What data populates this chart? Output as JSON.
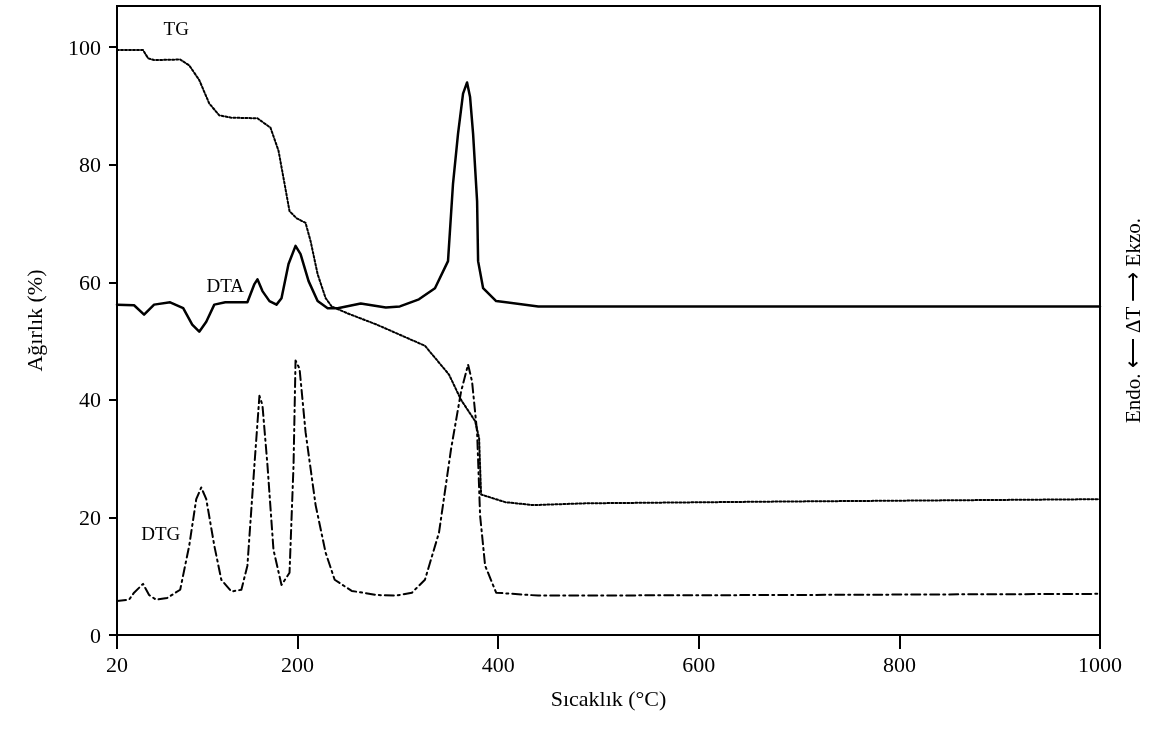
{
  "chart_data": {
    "type": "line",
    "xlabel": "Sıcaklık (°C)",
    "ylabel": "Ağırlık (%)",
    "y2label": "Endo. ⟵ ΔT ⟶ Ekzo.",
    "xlim": [
      20,
      1000
    ],
    "xticks": [
      20,
      200,
      400,
      600,
      800,
      1000
    ],
    "ylim": [
      0,
      107
    ],
    "yticks": [
      0,
      20,
      40,
      60,
      80,
      100
    ],
    "grid": false,
    "legend": false,
    "marker": "none",
    "series": [
      {
        "name": "TG",
        "color": "#000000",
        "line_style": "dotted",
        "x": [
          20,
          46,
          51,
          57,
          83,
          92,
          102,
          112,
          122,
          134,
          160,
          173,
          181,
          187,
          192,
          199,
          208,
          213,
          220,
          228,
          234,
          250,
          279,
          327,
          351,
          363,
          377,
          381,
          382,
          383,
          407,
          435,
          487,
          681,
          1000
        ],
        "values": [
          99.5,
          99.5,
          98.1,
          97.8,
          97.9,
          96.9,
          94.4,
          90.4,
          88.4,
          88.0,
          87.9,
          86.3,
          82.4,
          76.8,
          72.1,
          70.9,
          70.1,
          67.0,
          61.4,
          57.3,
          55.9,
          54.7,
          52.8,
          49.2,
          44.3,
          40.0,
          36.4,
          33.5,
          28.5,
          23.9,
          22.6,
          22.1,
          22.4,
          22.7,
          23.1
        ]
      },
      {
        "name": "DTA",
        "color": "#000000",
        "line_style": "solid",
        "x": [
          20,
          37,
          47,
          57,
          73,
          86,
          95,
          102,
          109,
          117,
          128,
          150,
          157,
          160,
          165,
          172,
          179,
          184,
          191,
          198,
          203,
          211,
          220,
          230,
          240,
          263,
          288,
          302,
          321,
          337,
          350,
          355,
          360,
          365,
          369,
          372,
          375,
          379,
          380,
          385,
          398,
          440,
          681,
          1000
        ],
        "values": [
          56.2,
          56.1,
          54.5,
          56.2,
          56.6,
          55.6,
          52.8,
          51.6,
          53.3,
          56.2,
          56.6,
          56.6,
          59.7,
          60.5,
          58.5,
          56.8,
          56.2,
          57.3,
          63.1,
          66.2,
          64.8,
          60.2,
          56.8,
          55.6,
          55.6,
          56.4,
          55.7,
          55.9,
          57.1,
          59.0,
          63.6,
          76.8,
          85.3,
          92.1,
          94.0,
          91.5,
          85.3,
          73.8,
          63.6,
          59.0,
          56.8,
          55.9,
          55.9,
          55.9
        ]
      },
      {
        "name": "DTG",
        "color": "#000000",
        "line_style": "dashed",
        "x": [
          20,
          32,
          37,
          46,
          52,
          59,
          70,
          83,
          92,
          99,
          104,
          109,
          117,
          124,
          134,
          144,
          150,
          157,
          162,
          165,
          170,
          176,
          184,
          192,
          196,
          198,
          202,
          208,
          218,
          228,
          237,
          254,
          279,
          298,
          314,
          327,
          341,
          353,
          363,
          370,
          374,
          379,
          382,
          387,
          398,
          440,
          681,
          1000
        ],
        "values": [
          5.8,
          6.0,
          7.2,
          8.7,
          6.8,
          6.0,
          6.3,
          7.7,
          15.2,
          23.1,
          25.1,
          23.1,
          15.2,
          9.4,
          7.4,
          7.7,
          11.8,
          28.9,
          40.7,
          39.1,
          28.9,
          14.5,
          8.5,
          10.6,
          28.9,
          46.7,
          45.3,
          34.5,
          22.1,
          14.0,
          9.4,
          7.5,
          6.8,
          6.7,
          7.2,
          9.4,
          17.4,
          31.6,
          41.4,
          46.0,
          43.1,
          34.5,
          20.3,
          11.8,
          7.2,
          6.7,
          6.8,
          7.0
        ]
      }
    ]
  }
}
